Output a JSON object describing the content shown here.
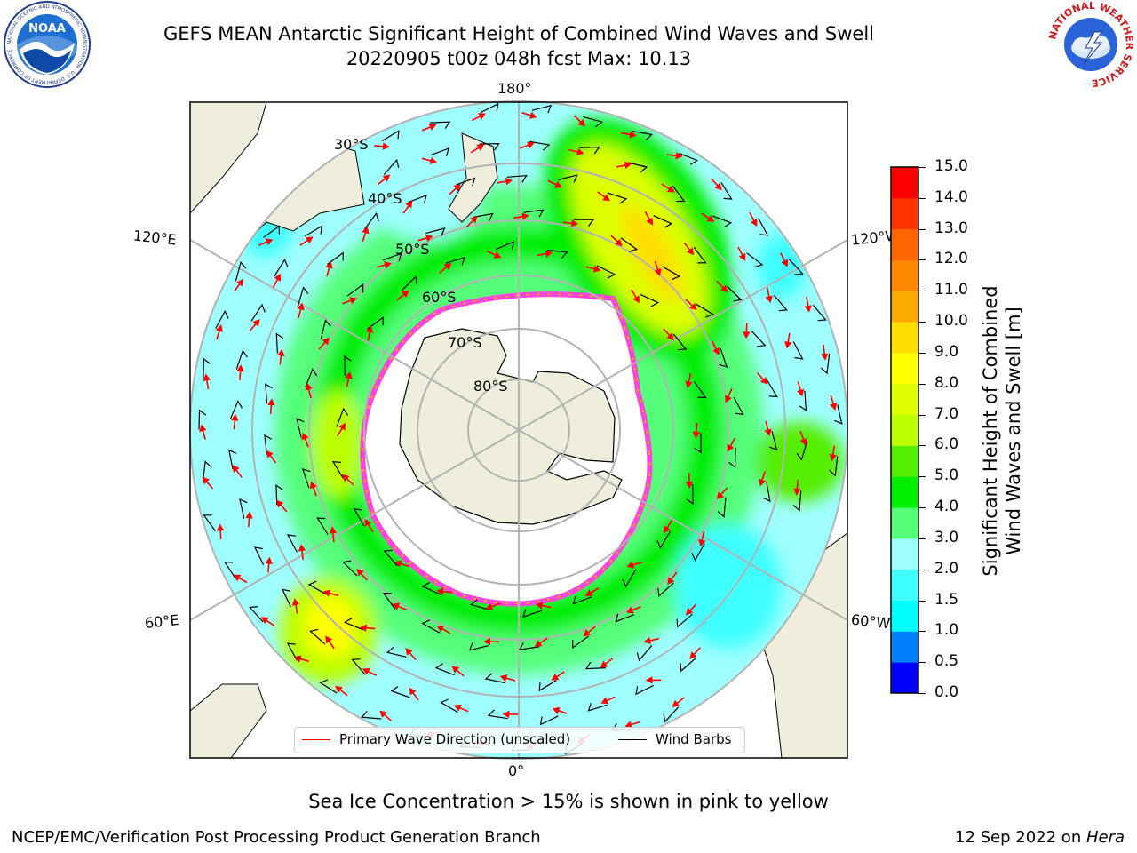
{
  "header": {
    "title_line1": "GEFS MEAN Antarctic Significant Height of Combined Wind Waves and Swell",
    "title_line2": "20220905 t00z 048h fcst   Max: 10.13"
  },
  "logos": {
    "left": {
      "name": "noaa-logo",
      "text": "NOAA",
      "ring_text": "NATIONAL OCEANIC AND ATMOSPHERIC ADMINISTRATION · U.S. DEPARTMENT OF COMMERCE"
    },
    "right": {
      "name": "nws-logo",
      "ring_text": "NATIONAL WEATHER SERVICE"
    }
  },
  "map": {
    "projection": "south-polar-stereographic",
    "longitude_labels": {
      "top": "180°",
      "bottom": "0°",
      "upper_left": "120°E",
      "upper_right": "120°W",
      "lower_left": "60°E",
      "lower_right": "60°W"
    },
    "latitude_labels": [
      "30°S",
      "40°S",
      "50°S",
      "60°S",
      "70°S",
      "80°S"
    ],
    "colors": {
      "land": "#efeddc",
      "sea_ice": "#ffffff",
      "grid": "#b3b3b3",
      "wave_arrow": "#ff0000",
      "wind_barb": "#000000",
      "ice_edge": "#ff44dd"
    }
  },
  "legend": {
    "items": [
      {
        "label": "Primary Wave Direction (unscaled)",
        "color": "#ff0000"
      },
      {
        "label": "Wind Barbs",
        "color": "#000000"
      }
    ]
  },
  "colorbar": {
    "title_line1": "Significant Height of Combined",
    "title_line2": "Wind Waves and Swell [m]",
    "ticks": [
      "0.0",
      "0.5",
      "1.0",
      "1.5",
      "2.0",
      "3.0",
      "4.0",
      "5.0",
      "6.0",
      "7.0",
      "8.0",
      "9.0",
      "10.0",
      "11.0",
      "12.0",
      "13.0",
      "14.0",
      "15.0"
    ],
    "colors": [
      "#0000ff",
      "#0080ff",
      "#00ffff",
      "#40ffff",
      "#9fffff",
      "#55ff7a",
      "#00ee00",
      "#55ee00",
      "#bbff00",
      "#ddff00",
      "#ffff00",
      "#ffdd00",
      "#ffaa00",
      "#ff8800",
      "#ff6600",
      "#ff3300",
      "#ff0000"
    ]
  },
  "footer": {
    "note": "Sea Ice Concentration > 15% is shown in pink to yellow",
    "left": "NCEP/EMC/Verification Post Processing Product Generation Branch",
    "right_prefix": "12 Sep 2022 on ",
    "right_host": "Hera"
  }
}
